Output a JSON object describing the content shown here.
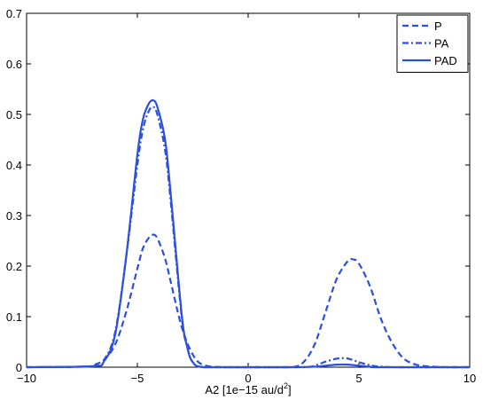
{
  "chart_data": {
    "type": "line",
    "title": "",
    "xlabel_main": "A2 [1e−15 au/d",
    "xlabel_sup": "2",
    "xlabel_end": "]",
    "ylabel": "",
    "xlim": [
      -10,
      10
    ],
    "ylim": [
      0,
      0.7
    ],
    "x_ticks": [
      -10,
      -5,
      0,
      5,
      10
    ],
    "x_tick_labels": [
      "−10",
      "−5",
      "0",
      "5",
      "10"
    ],
    "y_ticks": [
      0,
      0.1,
      0.2,
      0.3,
      0.4,
      0.5,
      0.6,
      0.7
    ],
    "y_tick_labels": [
      "0",
      "0.1",
      "0.2",
      "0.3",
      "0.4",
      "0.5",
      "0.6",
      "0.7"
    ],
    "grid": false,
    "legend_position": "top-right",
    "line_color": "#2b4fe0",
    "series": [
      {
        "name": "P",
        "style": "dashed",
        "x": [
          -10,
          -7.5,
          -7,
          -6.5,
          -6,
          -5.5,
          -5,
          -4.75,
          -4.5,
          -4.3,
          -4.1,
          -3.75,
          -3.5,
          -3,
          -2.5,
          -2,
          -1,
          0,
          1,
          2,
          2.5,
          3,
          3.5,
          4,
          4.5,
          4.75,
          5,
          5.5,
          6,
          6.5,
          7,
          7.5,
          8,
          9,
          10
        ],
        "y": [
          0,
          0.001,
          0.004,
          0.015,
          0.045,
          0.11,
          0.195,
          0.235,
          0.255,
          0.262,
          0.255,
          0.215,
          0.17,
          0.08,
          0.025,
          0.004,
          0,
          0,
          0,
          0,
          0.01,
          0.045,
          0.11,
          0.175,
          0.21,
          0.213,
          0.205,
          0.16,
          0.095,
          0.048,
          0.018,
          0.006,
          0.002,
          0,
          0
        ]
      },
      {
        "name": "PA",
        "style": "dashdot",
        "x": [
          -10,
          -7,
          -6.5,
          -6,
          -5.5,
          -5,
          -4.75,
          -4.5,
          -4.3,
          -4.1,
          -3.75,
          -3.5,
          -3,
          -2.75,
          -2.5,
          -2,
          0,
          2,
          2.8,
          3.2,
          3.5,
          4,
          4.3,
          4.6,
          5,
          5.5,
          6,
          7,
          10
        ],
        "y": [
          0,
          0.002,
          0.015,
          0.07,
          0.22,
          0.4,
          0.47,
          0.505,
          0.515,
          0.5,
          0.43,
          0.33,
          0.1,
          0.04,
          0.01,
          0,
          0,
          0,
          0.001,
          0.006,
          0.011,
          0.017,
          0.018,
          0.016,
          0.01,
          0.004,
          0.001,
          0,
          0
        ]
      },
      {
        "name": "PAD",
        "style": "solid",
        "x": [
          -10,
          -7,
          -6.5,
          -6,
          -5.5,
          -5,
          -4.75,
          -4.5,
          -4.3,
          -4.1,
          -3.75,
          -3.5,
          -3,
          -2.75,
          -2.5,
          -2,
          0,
          2,
          3,
          3.5,
          4,
          4.5,
          5,
          5.5,
          6,
          10
        ],
        "y": [
          0,
          0.002,
          0.012,
          0.065,
          0.22,
          0.42,
          0.49,
          0.52,
          0.528,
          0.515,
          0.45,
          0.345,
          0.105,
          0.04,
          0.01,
          0,
          0,
          0,
          0.001,
          0.003,
          0.005,
          0.005,
          0.003,
          0.001,
          0,
          0
        ]
      }
    ]
  }
}
